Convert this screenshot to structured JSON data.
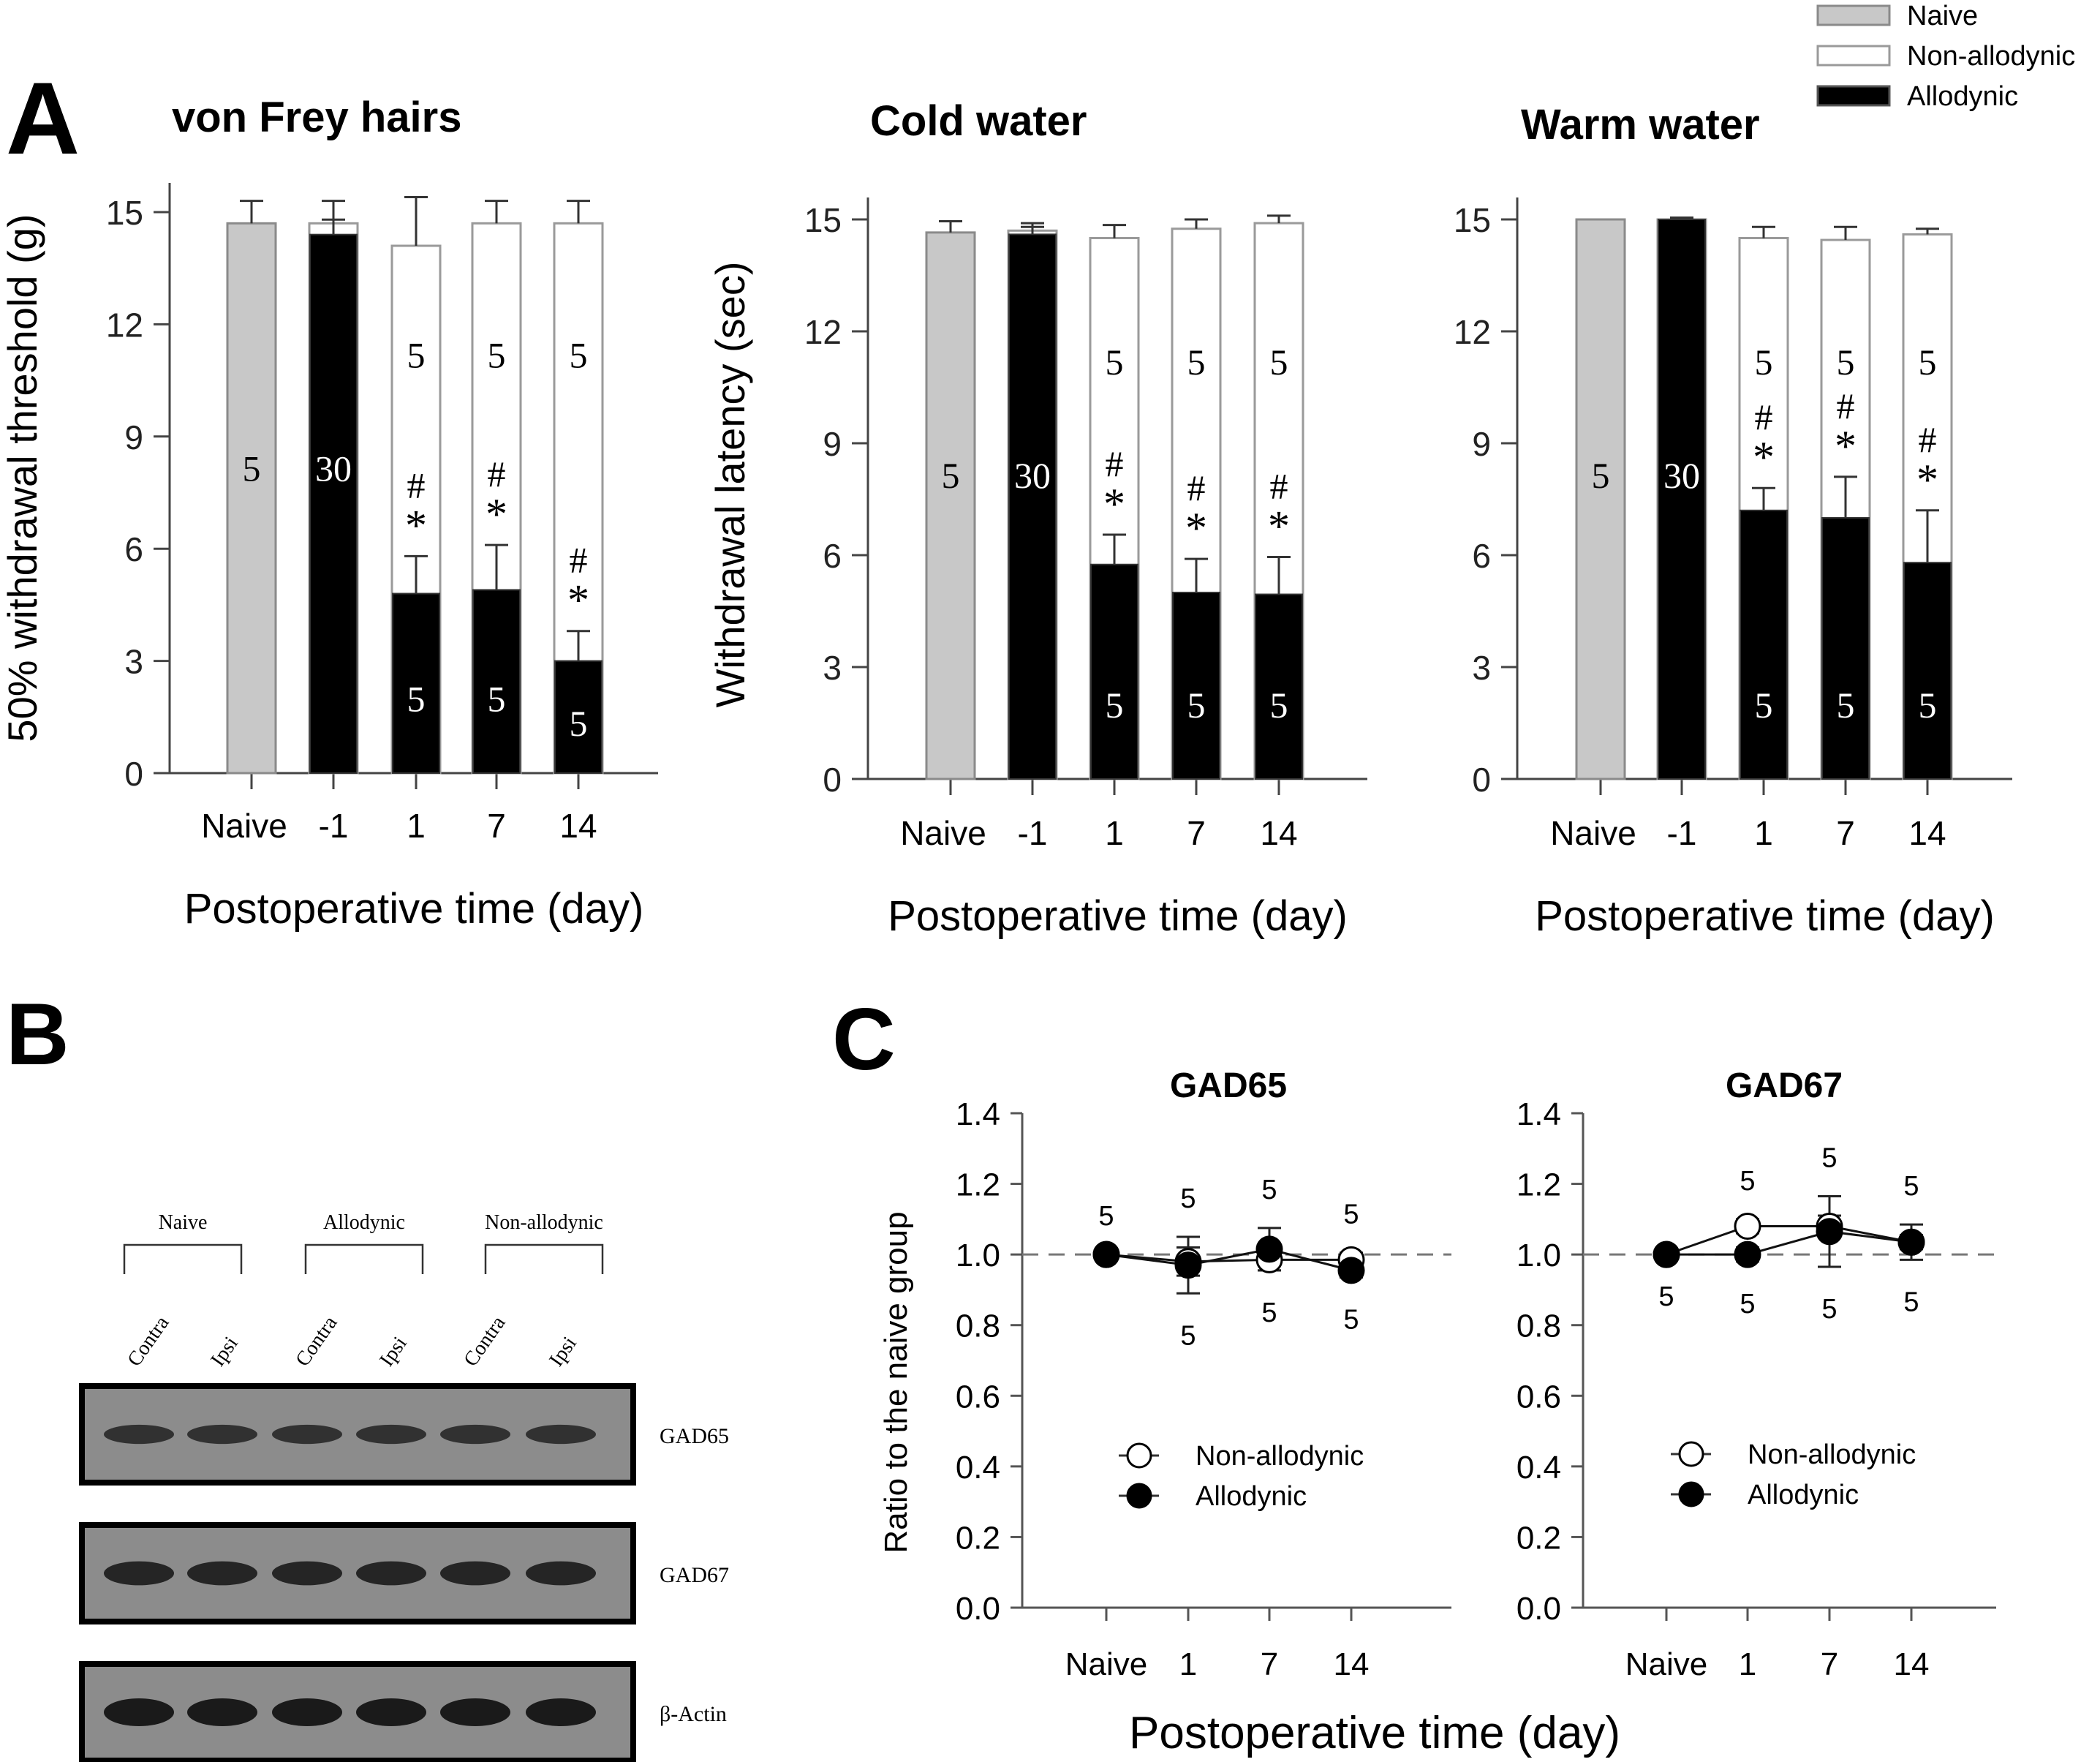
{
  "figure": {
    "panel_labels": {
      "A": "A",
      "B": "B",
      "C": "C"
    },
    "legend_A": [
      {
        "label": "Naive",
        "fill": "#c8c8c8",
        "stroke": "#8a8a8a"
      },
      {
        "label": "Non-allodynic",
        "fill": "#ffffff",
        "stroke": "#9a9a9a"
      },
      {
        "label": "Allodynic",
        "fill": "#000000",
        "stroke": "#555555"
      }
    ],
    "colors": {
      "naive": "#c8c8c8",
      "non_allodynic": "#ffffff",
      "allodynic": "#000000",
      "axis": "#444444",
      "blot_bg": "#8c8c8c"
    }
  },
  "chart_data": [
    {
      "id": "vonfrey",
      "type": "bar",
      "title": "von Frey hairs",
      "xlabel": "Postoperative time (day)",
      "ylabel": "50% withdrawal threshold (g)",
      "ylim": [
        0,
        15.9
      ],
      "yticks": [
        0,
        3,
        6,
        9,
        12,
        15
      ],
      "categories": [
        "Naive",
        "-1",
        "1",
        "7",
        "14"
      ],
      "series": [
        {
          "name": "Naive",
          "values": [
            14.7,
            null,
            null,
            null,
            null
          ],
          "errors": [
            0.6,
            null,
            null,
            null,
            null
          ]
        },
        {
          "name": "Non-allodynic",
          "values": [
            null,
            14.7,
            14.1,
            14.7,
            14.7
          ],
          "errors": [
            null,
            0.6,
            1.3,
            0.6,
            0.6
          ]
        },
        {
          "name": "Allodynic",
          "values": [
            null,
            14.4,
            4.8,
            4.9,
            3.0
          ],
          "errors": [
            null,
            0.4,
            1.0,
            1.2,
            0.8
          ]
        }
      ],
      "n_labels": {
        "naive": [
          "5",
          "",
          "",
          "",
          ""
        ],
        "allodynic": [
          "",
          "30",
          "5",
          "5",
          "5"
        ],
        "non_allodynic": [
          "",
          "",
          "5",
          "5",
          "5"
        ]
      },
      "significance": [
        "",
        "",
        "#*",
        "#*",
        "#*"
      ]
    },
    {
      "id": "cold",
      "type": "bar",
      "title": "Cold water",
      "xlabel": "Postoperative time (day)",
      "ylabel": "Withdrawal latency (sec)",
      "ylim": [
        0,
        16.2
      ],
      "yticks": [
        0,
        3,
        6,
        9,
        12,
        15
      ],
      "categories": [
        "Naive",
        "-1",
        "1",
        "7",
        "14"
      ],
      "series": [
        {
          "name": "Naive",
          "values": [
            14.65,
            null,
            null,
            null,
            null
          ],
          "errors": [
            0.3,
            null,
            null,
            null,
            null
          ]
        },
        {
          "name": "Non-allodynic",
          "values": [
            null,
            14.7,
            14.5,
            14.75,
            14.9
          ],
          "errors": [
            null,
            0.2,
            0.35,
            0.25,
            0.2
          ]
        },
        {
          "name": "Allodynic",
          "values": [
            null,
            14.6,
            5.75,
            5.0,
            4.95
          ],
          "errors": [
            null,
            0.2,
            0.8,
            0.9,
            1.0
          ]
        }
      ],
      "n_labels": {
        "naive": [
          "5",
          "",
          "",
          "",
          ""
        ],
        "allodynic": [
          "",
          "30",
          "5",
          "5",
          "5"
        ],
        "non_allodynic": [
          "",
          "",
          "5",
          "5",
          "5"
        ]
      },
      "significance": [
        "",
        "",
        "#*",
        "#*",
        "#*"
      ]
    },
    {
      "id": "warm",
      "type": "bar",
      "title": "Warm water",
      "xlabel": "Postoperative time (day)",
      "ylabel": "",
      "ylim": [
        0,
        16.2
      ],
      "yticks": [
        0,
        3,
        6,
        9,
        12,
        15
      ],
      "categories": [
        "Naive",
        "-1",
        "1",
        "7",
        "14"
      ],
      "series": [
        {
          "name": "Naive",
          "values": [
            15.0,
            null,
            null,
            null,
            null
          ],
          "errors": [
            0,
            null,
            null,
            null,
            null
          ]
        },
        {
          "name": "Non-allodynic",
          "values": [
            null,
            15.0,
            14.5,
            14.45,
            14.6
          ],
          "errors": [
            null,
            0.05,
            0.3,
            0.35,
            0.15
          ]
        },
        {
          "name": "Allodynic",
          "values": [
            null,
            15.0,
            7.2,
            7.0,
            5.8
          ],
          "errors": [
            null,
            0.05,
            0.6,
            1.1,
            1.4
          ]
        }
      ],
      "n_labels": {
        "naive": [
          "5",
          "",
          "",
          "",
          ""
        ],
        "allodynic": [
          "",
          "30",
          "5",
          "5",
          "5"
        ],
        "non_allodynic": [
          "",
          "",
          "5",
          "5",
          "5"
        ]
      },
      "significance": [
        "",
        "",
        "#*",
        "#*",
        "#*"
      ]
    },
    {
      "id": "gad65",
      "type": "line",
      "title": "GAD65",
      "xlabel": "Postoperative time (day)",
      "ylabel": "Ratio to the naive group",
      "ylim": [
        0,
        1.4
      ],
      "yticks": [
        "0.0",
        "0.2",
        "0.4",
        "0.6",
        "0.8",
        "1.0",
        "1.2",
        "1.4"
      ],
      "categories": [
        "Naive",
        "1",
        "7",
        "14"
      ],
      "reference_line": 1.0,
      "legend": [
        "Non-allodynic",
        "Allodynic"
      ],
      "legend_position": "center",
      "series": [
        {
          "name": "Non-allodynic",
          "marker": "open-circle",
          "values": [
            1.0,
            0.98,
            0.985,
            0.985
          ],
          "errors": [
            0,
            0.04,
            0.03,
            0.02
          ]
        },
        {
          "name": "Allodynic",
          "marker": "filled-circle",
          "values": [
            1.0,
            0.97,
            1.015,
            0.955
          ],
          "errors": [
            0,
            0.08,
            0.06,
            0.02
          ]
        }
      ],
      "n_above": [
        "5",
        "5",
        "5",
        "5"
      ],
      "n_below": [
        "",
        "5",
        "5",
        "5"
      ]
    },
    {
      "id": "gad67",
      "type": "line",
      "title": "GAD67",
      "xlabel": "Postoperative time (day)",
      "ylabel": "",
      "ylim": [
        0,
        1.4
      ],
      "yticks": [
        "0.0",
        "0.2",
        "0.4",
        "0.6",
        "0.8",
        "1.0",
        "1.2",
        "1.4"
      ],
      "categories": [
        "Naive",
        "1",
        "7",
        "14"
      ],
      "reference_line": 1.0,
      "legend": [
        "Non-allodynic",
        "Allodynic"
      ],
      "legend_position": "center",
      "series": [
        {
          "name": "Non-allodynic",
          "marker": "open-circle",
          "values": [
            1.0,
            1.08,
            1.08,
            1.035
          ],
          "errors": [
            0,
            0.02,
            0.03,
            0.02
          ]
        },
        {
          "name": "Allodynic",
          "marker": "filled-circle",
          "values": [
            1.0,
            1.0,
            1.065,
            1.035
          ],
          "errors": [
            0,
            0.02,
            0.1,
            0.05
          ]
        }
      ],
      "n_above": [
        "",
        "5",
        "5",
        "5"
      ],
      "n_below": [
        "5",
        "5",
        "5",
        "5"
      ]
    }
  ],
  "western_blot": {
    "groups": [
      "Naive",
      "Allodynic",
      "Non-allodynic"
    ],
    "lanes": [
      "Contra",
      "Ipsi",
      "Contra",
      "Ipsi",
      "Contra",
      "Ipsi"
    ],
    "bands": [
      {
        "label": "GAD65",
        "intensity": 0.55
      },
      {
        "label": "GAD67",
        "intensity": 0.8
      },
      {
        "label": "β-Actin",
        "intensity": 1.0
      }
    ]
  },
  "shared_xlabel_C": "Postoperative time (day)"
}
